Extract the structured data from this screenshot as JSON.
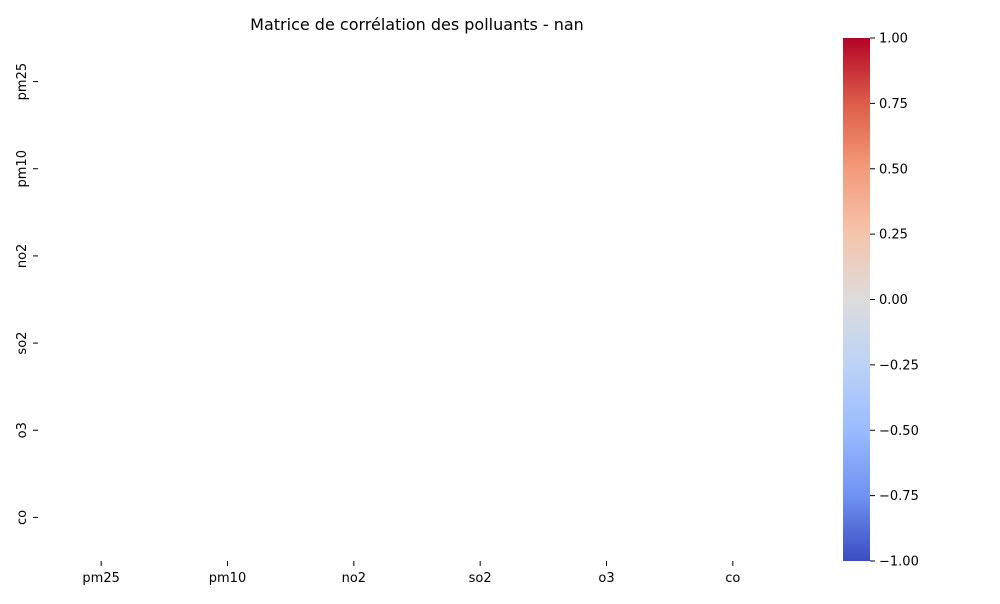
{
  "chart_data": {
    "type": "heatmap",
    "title": "Matrice de corrélation des polluants - nan",
    "xlabel": "",
    "ylabel": "",
    "x_categories": [
      "pm25",
      "pm10",
      "no2",
      "so2",
      "o3",
      "co"
    ],
    "y_categories": [
      "pm25",
      "pm10",
      "no2",
      "so2",
      "o3",
      "co"
    ],
    "values": [
      [
        null,
        null,
        null,
        null,
        null,
        null
      ],
      [
        null,
        null,
        null,
        null,
        null,
        null
      ],
      [
        null,
        null,
        null,
        null,
        null,
        null
      ],
      [
        null,
        null,
        null,
        null,
        null,
        null
      ],
      [
        null,
        null,
        null,
        null,
        null,
        null
      ],
      [
        null,
        null,
        null,
        null,
        null,
        null
      ]
    ],
    "colorbar": {
      "colormap": "coolwarm",
      "vmin": -1.0,
      "vmax": 1.0,
      "ticks": [
        1.0,
        0.75,
        0.5,
        0.25,
        0.0,
        -0.25,
        -0.5,
        -0.75,
        -1.0
      ],
      "tick_labels": [
        "1.00",
        "0.75",
        "0.50",
        "0.25",
        "0.00",
        "−0.25",
        "−0.50",
        "−0.75",
        "−1.00"
      ],
      "stops": [
        "#b40426",
        "#dc5d4a",
        "#f49a7b",
        "#f5c4ac",
        "#dddcdc",
        "#bcd2f7",
        "#9abbff",
        "#6f92f3",
        "#3b4cc0"
      ]
    },
    "grid": false,
    "legend": "colorbar-right"
  }
}
